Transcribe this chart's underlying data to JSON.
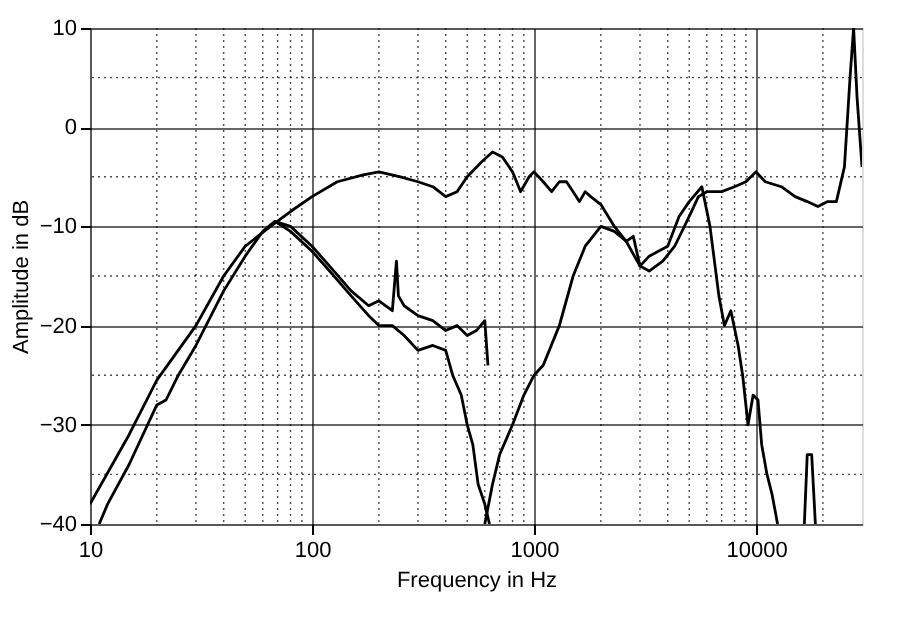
{
  "chart_data": {
    "type": "line",
    "xlabel": "Frequency in Hz",
    "ylabel": "Amplitude in dB",
    "log": "x",
    "xlim": [
      10,
      30000
    ],
    "xticks": [
      10,
      100,
      1000,
      10000
    ],
    "ylim": [
      -40,
      10
    ],
    "yticks": [
      -40,
      -30,
      -20,
      -10,
      0,
      10
    ],
    "grid": true,
    "marker": "none",
    "line_style": "solid",
    "series": [
      {
        "color": "#000000",
        "x": [
          10,
          15,
          20,
          30,
          40,
          50,
          65,
          80,
          100,
          130,
          170,
          200,
          250,
          300,
          350,
          400,
          450,
          500,
          580,
          650,
          720,
          800,
          870,
          950,
          1000,
          1100,
          1200,
          1300,
          1400,
          1500,
          1600,
          1700,
          1800,
          2000,
          2300,
          2600,
          2800,
          3000,
          3300,
          4000,
          4500,
          5000,
          5700,
          6200,
          6800,
          7200,
          7700,
          8300,
          8700,
          9200,
          9700,
          10200,
          10600,
          11200,
          11800,
          12500
        ],
        "values": [
          -38,
          -31,
          -25.5,
          -20,
          -15,
          -12,
          -10,
          -8.5,
          -7,
          -5.5,
          -4.8,
          -4.5,
          -5,
          -5.5,
          -6,
          -7,
          -6.5,
          -5,
          -3.5,
          -2.5,
          -3,
          -4.5,
          -6.5,
          -5,
          -4.5,
          -5.5,
          -6.5,
          -5.5,
          -5.5,
          -6.5,
          -7.5,
          -6.5,
          -7,
          -7.8,
          -10,
          -11.5,
          -11,
          -14,
          -13,
          -12,
          -9,
          -7.5,
          -6,
          -10,
          -17,
          -20,
          -18.5,
          -22,
          -25,
          -30,
          -27,
          -27.5,
          -32,
          -35,
          -37,
          -40
        ]
      },
      {
        "color": "#000000",
        "x": [
          600,
          650,
          700,
          800,
          900,
          1000,
          1100,
          1300,
          1500,
          1700,
          2000,
          2300,
          2600,
          3000,
          3300,
          3800,
          4300,
          5000,
          5500,
          6000,
          7000,
          8000,
          9000,
          10000,
          11000,
          13000,
          15000,
          17000,
          19000,
          21000,
          23000,
          25000,
          26500,
          27500,
          28500,
          30000
        ],
        "values": [
          -40,
          -36,
          -33,
          -30,
          -27,
          -25,
          -24,
          -20,
          -15,
          -12,
          -10,
          -10.5,
          -11.5,
          -14,
          -14.5,
          -13.5,
          -12,
          -9,
          -7,
          -6.5,
          -6.5,
          -6,
          -5.5,
          -4.5,
          -5.5,
          -6,
          -7,
          -7.5,
          -8,
          -7.5,
          -7.5,
          -4,
          5,
          10,
          3,
          -4
        ]
      },
      {
        "color": "#000000",
        "x": [
          11,
          12,
          15,
          20,
          22,
          25,
          30,
          40,
          50,
          60,
          68,
          80,
          100,
          120,
          150,
          180,
          200,
          230,
          260,
          300,
          350,
          400,
          430,
          470,
          500,
          530,
          560,
          600,
          630
        ],
        "values": [
          -40,
          -38,
          -34,
          -28,
          -27.5,
          -25,
          -22,
          -16.5,
          -13,
          -10.5,
          -9.5,
          -10.5,
          -12.5,
          -14.5,
          -17,
          -19,
          -20,
          -20,
          -21,
          -22.5,
          -22,
          -22.5,
          -25,
          -27,
          -30,
          -32,
          -36,
          -38,
          -40
        ]
      },
      {
        "color": "#000000",
        "x": [
          68,
          80,
          100,
          120,
          150,
          180,
          200,
          230,
          240,
          245,
          260,
          300,
          350,
          400,
          450,
          500,
          550,
          600,
          620
        ],
        "values": [
          -9.5,
          -10,
          -12,
          -14,
          -16.5,
          -18,
          -17.5,
          -18.5,
          -13.5,
          -17,
          -18,
          -19,
          -19.5,
          -20.5,
          -20,
          -21,
          -20.5,
          -19.5,
          -24
        ]
      },
      {
        "color": "#000000",
        "x": [
          16500,
          17000,
          17800,
          18500
        ],
        "values": [
          -40,
          -33,
          -33,
          -40
        ]
      }
    ]
  }
}
